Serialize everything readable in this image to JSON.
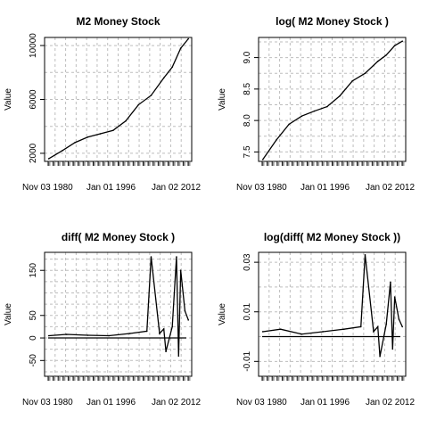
{
  "chart_data": [
    {
      "type": "line",
      "title": "M2 Money Stock",
      "ylabel": "Value",
      "ylim": [
        1400,
        10600
      ],
      "yticks": [
        2000,
        6000,
        10000
      ],
      "ytick_labels": [
        "2000",
        "6000",
        "10000"
      ],
      "xtick_labels": [
        "Nov 03 1980",
        "Jan 01 1996",
        "Jan 02 2012"
      ],
      "grid": true,
      "series": [
        {
          "x": [
            1980.8,
            1984,
            1987,
            1990,
            1993,
            1996,
            1999,
            2002,
            2005,
            2008,
            2010,
            2012,
            2013.8
          ],
          "y": [
            1600,
            2200,
            2800,
            3200,
            3450,
            3700,
            4400,
            5600,
            6300,
            7600,
            8400,
            9800,
            10500
          ]
        }
      ]
    },
    {
      "type": "line",
      "title": "log( M2 Money Stock )",
      "ylabel": "Value",
      "ylim": [
        7.35,
        9.32
      ],
      "yticks": [
        7.5,
        8.0,
        8.5,
        9.0
      ],
      "ytick_labels": [
        "7.5",
        "8.0",
        "8.5",
        "9.0"
      ],
      "xtick_labels": [
        "Nov 03 1980",
        "Jan 01 1996",
        "Jan 02 2012"
      ],
      "grid": true,
      "series": [
        {
          "x": [
            1980.8,
            1984,
            1987,
            1990,
            1993,
            1996,
            1999,
            2002,
            2005,
            2008,
            2010,
            2012,
            2013.8
          ],
          "y": [
            7.38,
            7.69,
            7.94,
            8.07,
            8.15,
            8.22,
            8.39,
            8.63,
            8.75,
            8.94,
            9.04,
            9.19,
            9.26
          ]
        }
      ]
    },
    {
      "type": "line",
      "title": "diff( M2 Money Stock )",
      "ylabel": "Value",
      "ylim": [
        -85,
        190
      ],
      "yticks": [
        -50,
        0,
        50,
        150
      ],
      "ytick_labels": [
        "-50",
        "0",
        "50",
        "150"
      ],
      "xtick_labels": [
        "Nov 03 1980",
        "Jan 01 1996",
        "Jan 02 2012"
      ],
      "grid": true,
      "series": [
        {
          "x": [
            1980.8,
            1985,
            1990,
            1995,
            2000,
            2004,
            2005,
            2007,
            2008,
            2008.5,
            2010,
            2011,
            2011.5,
            2012,
            2013,
            2013.8
          ],
          "y": [
            5,
            8,
            6,
            5,
            10,
            15,
            180,
            10,
            20,
            -30,
            25,
            180,
            -40,
            150,
            60,
            40
          ]
        }
      ]
    },
    {
      "type": "line",
      "title": "log(diff( M2 Money Stock ))",
      "ylabel": "Value",
      "ylim": [
        -0.016,
        0.034
      ],
      "yticks": [
        -0.01,
        0.01,
        0.03
      ],
      "ytick_labels": [
        "-0.01",
        "0.01",
        "0.03"
      ],
      "xtick_labels": [
        "Nov 03 1980",
        "Jan 01 1996",
        "Jan 02 2012"
      ],
      "grid": true,
      "series": [
        {
          "x": [
            1980.8,
            1985,
            1990,
            1995,
            2000,
            2004,
            2005,
            2007,
            2008,
            2008.5,
            2010,
            2011,
            2011.5,
            2012,
            2013,
            2013.8
          ],
          "y": [
            0.002,
            0.003,
            0.001,
            0.002,
            0.003,
            0.004,
            0.033,
            0.002,
            0.004,
            -0.008,
            0.005,
            0.022,
            -0.005,
            0.016,
            0.007,
            0.004
          ]
        }
      ]
    }
  ]
}
